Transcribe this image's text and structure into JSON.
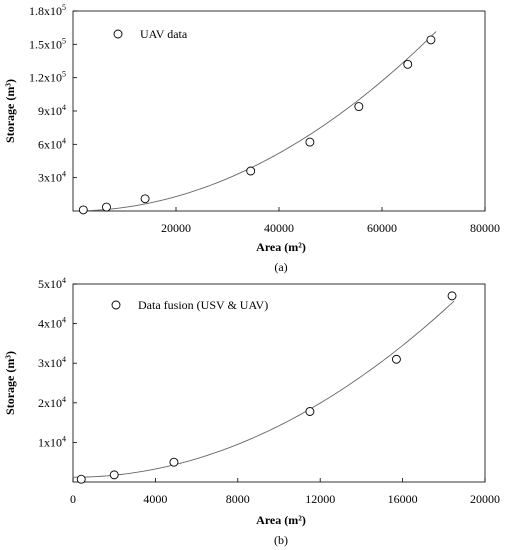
{
  "chart_data": [
    {
      "type": "scatter",
      "caption": "(a)",
      "xlabel": "Area (m²)",
      "ylabel": "Storage (m³)",
      "xlim": [
        0,
        80000
      ],
      "ylim": [
        0,
        180000
      ],
      "xticks": [
        {
          "value": 20000,
          "label": "20000"
        },
        {
          "value": 40000,
          "label": "40000"
        },
        {
          "value": 60000,
          "label": "60000"
        },
        {
          "value": 80000,
          "label": "80000"
        }
      ],
      "yticks": [
        {
          "value": 30000,
          "base": "3x10",
          "exp": "4"
        },
        {
          "value": 60000,
          "base": "6x10",
          "exp": "4"
        },
        {
          "value": 90000,
          "base": "9x10",
          "exp": "4"
        },
        {
          "value": 120000,
          "base": "1.2x10",
          "exp": "5"
        },
        {
          "value": 150000,
          "base": "1.5x10",
          "exp": "5"
        },
        {
          "value": 180000,
          "base": "1.8x10",
          "exp": "5"
        }
      ],
      "legend": {
        "label": "UAV data",
        "position": "top-left"
      },
      "grid": false,
      "series": [
        {
          "name": "UAV data",
          "x": [
            2000,
            6500,
            14000,
            34500,
            46000,
            55500,
            65000,
            69500
          ],
          "y": [
            1000,
            3500,
            11000,
            36000,
            62000,
            94000,
            132000,
            154000
          ]
        }
      ],
      "fit": {
        "a": 3.25e-05,
        "b": 0,
        "c": 0,
        "x_start": 2000,
        "x_end": 70500
      }
    },
    {
      "type": "scatter",
      "caption": "(b)",
      "xlabel": "Area (m²)",
      "ylabel": "Storage (m³)",
      "xlim": [
        0,
        20000
      ],
      "ylim": [
        0,
        50000
      ],
      "xticks": [
        {
          "value": 0,
          "label": "0"
        },
        {
          "value": 4000,
          "label": "4000"
        },
        {
          "value": 8000,
          "label": "8000"
        },
        {
          "value": 12000,
          "label": "12000"
        },
        {
          "value": 16000,
          "label": "16000"
        },
        {
          "value": 20000,
          "label": "20000"
        }
      ],
      "yticks": [
        {
          "value": 10000,
          "base": "1x10",
          "exp": "4"
        },
        {
          "value": 20000,
          "base": "2x10",
          "exp": "4"
        },
        {
          "value": 30000,
          "base": "3x10",
          "exp": "4"
        },
        {
          "value": 40000,
          "base": "4x10",
          "exp": "4"
        },
        {
          "value": 50000,
          "base": "5x10",
          "exp": "4"
        }
      ],
      "legend": {
        "label": "Data fusion (USV & UAV)",
        "position": "top-left"
      },
      "grid": false,
      "series": [
        {
          "name": "Data fusion (USV & UAV)",
          "x": [
            400,
            2000,
            4900,
            11500,
            15700,
            18400
          ],
          "y": [
            700,
            1800,
            5000,
            17800,
            31000,
            47000
          ]
        }
      ],
      "fit": {
        "a": 0.00013,
        "b": 0,
        "c": 1200,
        "x_start": 0,
        "x_end": 18500
      }
    }
  ]
}
